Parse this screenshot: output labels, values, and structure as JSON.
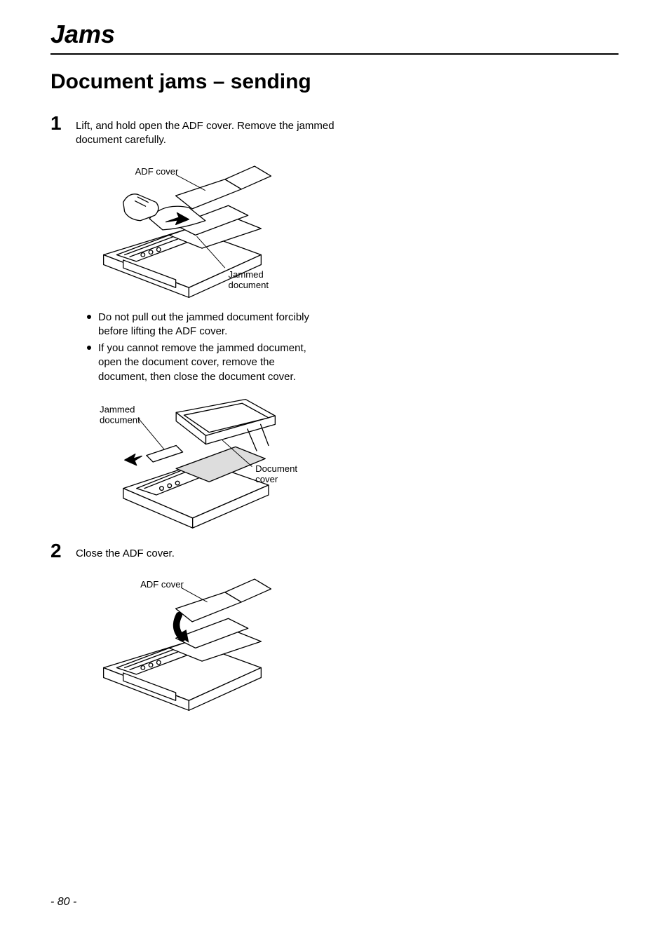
{
  "page": {
    "title": "Jams",
    "section_title": "Document jams – sending",
    "page_number": "- 80 -",
    "colors": {
      "text": "#000000",
      "bg": "#ffffff",
      "rule": "#000000"
    },
    "fonts": {
      "title": {
        "family": "Arial",
        "size_pt": 27,
        "weight": "bold",
        "style": "italic"
      },
      "section": {
        "family": "Arial",
        "size_pt": 22,
        "weight": "bold"
      },
      "body": {
        "family": "Arial",
        "size_pt": 11
      },
      "stepnum": {
        "family": "Arial",
        "size_pt": 21,
        "weight": "bold"
      },
      "callout": {
        "family": "Arial",
        "size_pt": 10.5
      }
    }
  },
  "steps": [
    {
      "num": "1",
      "text": "Lift, and hold open the ADF cover. Remove the jammed document carefully.",
      "bullets": [
        "Do not pull out the jammed document forcibly before lifting the ADF cover.",
        "If you cannot remove the jammed document, open the document cover, remove the document, then close the document cover."
      ]
    },
    {
      "num": "2",
      "text": "Close the ADF cover.",
      "bullets": []
    }
  ],
  "figures": {
    "fig1": {
      "type": "line-drawing",
      "callouts": {
        "adf_cover": "ADF cover",
        "jammed_doc": "Jammed\ndocument"
      },
      "stroke": "#000000",
      "fill": "#ffffff",
      "line_width": 1.4
    },
    "fig2": {
      "type": "line-drawing",
      "callouts": {
        "jammed_doc": "Jammed\ndocument",
        "document_cover": "Document\ncover"
      },
      "stroke": "#000000",
      "fill": "#ffffff",
      "line_width": 1.4
    },
    "fig3": {
      "type": "line-drawing",
      "callouts": {
        "adf_cover": "ADF cover"
      },
      "stroke": "#000000",
      "fill": "#ffffff",
      "line_width": 1.4
    }
  }
}
